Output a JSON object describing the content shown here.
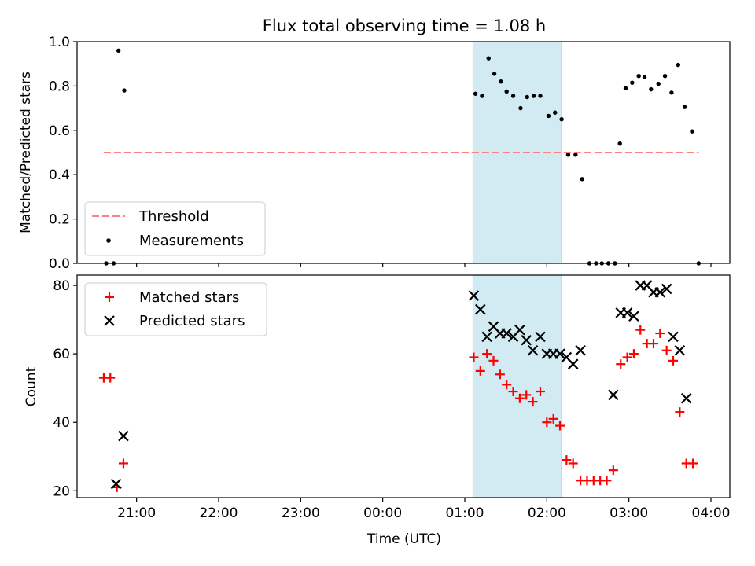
{
  "chart_data": {
    "title": "Flux total observing time = 1.08 h",
    "xlabel": "Time (UTC)",
    "x_tick_labels": [
      "21:00",
      "22:00",
      "23:00",
      "00:00",
      "01:00",
      "02:00",
      "03:00",
      "04:00"
    ],
    "x_tick_values_hours": [
      21,
      22,
      23,
      24,
      25,
      26,
      27,
      28
    ],
    "xlim_hours": [
      20.275,
      28.23
    ],
    "highlight": {
      "x_start_hours": 25.1,
      "x_end_hours": 26.18,
      "color": "#add8e6"
    },
    "colors": {
      "threshold": "#ff8080",
      "measurements": "#000000",
      "matched": "#ff0000",
      "predicted": "#000000"
    },
    "panels": [
      {
        "type": "scatter",
        "ylabel": "Matched/Predicted stars",
        "ylim": [
          0,
          1.0
        ],
        "y_ticks": [
          0.0,
          0.2,
          0.4,
          0.6,
          0.8,
          1.0
        ],
        "y_tick_labels": [
          "0.0",
          "0.2",
          "0.4",
          "0.6",
          "0.8",
          "1.0"
        ],
        "legend": {
          "position": "lower-left",
          "entries": [
            {
              "label": "Threshold",
              "marker": "dashed-line"
            },
            {
              "label": "Measurements",
              "marker": "dot"
            }
          ]
        },
        "threshold": {
          "name": "Threshold",
          "y": 0.5,
          "x_start": 20.6,
          "x_end": 27.85
        },
        "series": [
          {
            "name": "Measurements",
            "marker": "dot",
            "points": [
              [
                20.63,
                0.0
              ],
              [
                20.72,
                0.0
              ],
              [
                20.78,
                0.96
              ],
              [
                20.85,
                0.78
              ],
              [
                25.13,
                0.765
              ],
              [
                25.21,
                0.755
              ],
              [
                25.29,
                0.925
              ],
              [
                25.36,
                0.855
              ],
              [
                25.44,
                0.82
              ],
              [
                25.51,
                0.775
              ],
              [
                25.59,
                0.755
              ],
              [
                25.68,
                0.7
              ],
              [
                25.76,
                0.75
              ],
              [
                25.84,
                0.755
              ],
              [
                25.92,
                0.755
              ],
              [
                26.02,
                0.665
              ],
              [
                26.1,
                0.68
              ],
              [
                26.18,
                0.65
              ],
              [
                26.26,
                0.49
              ],
              [
                26.35,
                0.49
              ],
              [
                26.43,
                0.38
              ],
              [
                26.52,
                0.0
              ],
              [
                26.6,
                0.0
              ],
              [
                26.67,
                0.0
              ],
              [
                26.75,
                0.0
              ],
              [
                26.83,
                0.0
              ],
              [
                26.89,
                0.54
              ],
              [
                26.96,
                0.79
              ],
              [
                27.04,
                0.815
              ],
              [
                27.12,
                0.845
              ],
              [
                27.19,
                0.84
              ],
              [
                27.27,
                0.785
              ],
              [
                27.36,
                0.81
              ],
              [
                27.44,
                0.845
              ],
              [
                27.52,
                0.77
              ],
              [
                27.6,
                0.895
              ],
              [
                27.68,
                0.705
              ],
              [
                27.77,
                0.595
              ],
              [
                27.85,
                0.0
              ]
            ]
          }
        ]
      },
      {
        "type": "scatter",
        "ylabel": "Count",
        "ylim": [
          18,
          83
        ],
        "y_ticks": [
          20,
          40,
          60,
          80
        ],
        "y_tick_labels": [
          "20",
          "40",
          "60",
          "80"
        ],
        "legend": {
          "position": "upper-left",
          "entries": [
            {
              "label": "Matched stars",
              "marker": "plus"
            },
            {
              "label": "Predicted stars",
              "marker": "x"
            }
          ]
        },
        "series": [
          {
            "name": "Matched stars",
            "marker": "plus",
            "points": [
              [
                20.6,
                53
              ],
              [
                20.68,
                53
              ],
              [
                20.76,
                21
              ],
              [
                20.84,
                28
              ],
              [
                25.11,
                59
              ],
              [
                25.19,
                55
              ],
              [
                25.27,
                60
              ],
              [
                25.35,
                58
              ],
              [
                25.43,
                54
              ],
              [
                25.51,
                51
              ],
              [
                25.59,
                49
              ],
              [
                25.67,
                47
              ],
              [
                25.75,
                48
              ],
              [
                25.83,
                46
              ],
              [
                25.92,
                49
              ],
              [
                26.0,
                40
              ],
              [
                26.08,
                41
              ],
              [
                26.16,
                39
              ],
              [
                26.24,
                29
              ],
              [
                26.32,
                28
              ],
              [
                26.41,
                23
              ],
              [
                26.49,
                23
              ],
              [
                26.57,
                23
              ],
              [
                26.65,
                23
              ],
              [
                26.73,
                23
              ],
              [
                26.81,
                26
              ],
              [
                26.9,
                57
              ],
              [
                26.98,
                59
              ],
              [
                27.06,
                60
              ],
              [
                27.14,
                67
              ],
              [
                27.22,
                63
              ],
              [
                27.3,
                63
              ],
              [
                27.38,
                66
              ],
              [
                27.46,
                61
              ],
              [
                27.54,
                58
              ],
              [
                27.62,
                43
              ],
              [
                27.7,
                28
              ],
              [
                27.78,
                28
              ]
            ]
          },
          {
            "name": "Predicted stars",
            "marker": "x",
            "points": [
              [
                20.75,
                22
              ],
              [
                20.84,
                36
              ],
              [
                25.11,
                77
              ],
              [
                25.19,
                73
              ],
              [
                25.27,
                65
              ],
              [
                25.35,
                68
              ],
              [
                25.43,
                66
              ],
              [
                25.51,
                66
              ],
              [
                25.59,
                65
              ],
              [
                25.67,
                67
              ],
              [
                25.75,
                64
              ],
              [
                25.83,
                61
              ],
              [
                25.92,
                65
              ],
              [
                26.0,
                60
              ],
              [
                26.08,
                60
              ],
              [
                26.16,
                60
              ],
              [
                26.24,
                59
              ],
              [
                26.32,
                57
              ],
              [
                26.41,
                61
              ],
              [
                26.81,
                48
              ],
              [
                26.9,
                72
              ],
              [
                26.98,
                72
              ],
              [
                27.06,
                71
              ],
              [
                27.14,
                80
              ],
              [
                27.22,
                80
              ],
              [
                27.3,
                78
              ],
              [
                27.38,
                78
              ],
              [
                27.46,
                79
              ],
              [
                27.54,
                65
              ],
              [
                27.62,
                61
              ],
              [
                27.7,
                47
              ]
            ]
          }
        ]
      }
    ]
  }
}
